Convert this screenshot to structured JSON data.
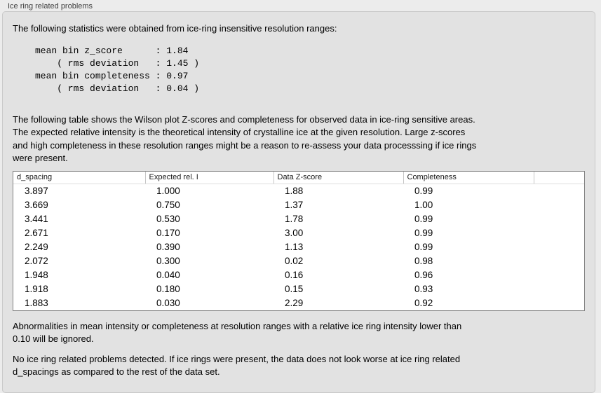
{
  "panel": {
    "title": "Ice ring related problems"
  },
  "intro": "The following statistics were obtained from ice-ring insensitive resolution ranges:",
  "stats_block": "mean bin z_score      : 1.84\n    ( rms deviation   : 1.45 )\nmean bin completeness : 0.97\n    ( rms deviation   : 0.04 )",
  "description": "The following table shows the Wilson plot Z-scores and completeness for observed data in ice-ring sensitive areas.\nThe expected relative intensity is the theoretical intensity of crystalline ice at the given resolution. Large z-scores\nand high completeness in these resolution ranges might be a reason to re-assess your data processsing if ice rings\nwere present.",
  "table": {
    "columns": [
      "d_spacing",
      "Expected rel. I",
      "Data Z-score",
      "Completeness"
    ],
    "rows": [
      [
        "3.897",
        "1.000",
        "1.88",
        "0.99"
      ],
      [
        "3.669",
        "0.750",
        "1.37",
        "1.00"
      ],
      [
        "3.441",
        "0.530",
        "1.78",
        "0.99"
      ],
      [
        "2.671",
        "0.170",
        "3.00",
        "0.99"
      ],
      [
        "2.249",
        "0.390",
        "1.13",
        "0.99"
      ],
      [
        "2.072",
        "0.300",
        "0.02",
        "0.98"
      ],
      [
        "1.948",
        "0.040",
        "0.16",
        "0.96"
      ],
      [
        "1.918",
        "0.180",
        "0.15",
        "0.93"
      ],
      [
        "1.883",
        "0.030",
        "2.29",
        "0.92"
      ]
    ]
  },
  "note_ignore": "Abnormalities in mean intensity or completeness at resolution ranges with a relative ice ring intensity lower than\n0.10 will be ignored.",
  "conclusion": "No ice ring related problems detected. If ice rings were present, the data does not look worse at ice ring related\nd_spacings as compared to the rest of the data set.",
  "colors": {
    "page_bg": "#ececec",
    "panel_bg": "#e2e2e2",
    "panel_border": "#c9c9c9",
    "table_bg": "#ffffff",
    "table_border": "#828282",
    "header_divider": "#c6c6c6",
    "text": "#000000",
    "title_text": "#3e3e3e"
  }
}
